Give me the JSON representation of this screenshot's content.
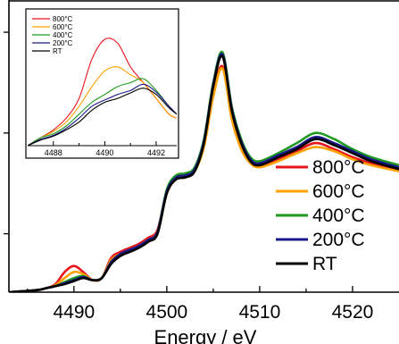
{
  "chart_data": [
    {
      "type": "line",
      "title": "",
      "xlabel": "Energy / eV",
      "ylabel": "",
      "xlim": [
        4483,
        4525
      ],
      "ylim": [
        0,
        1.45
      ],
      "xticks": [
        "4490",
        "4500",
        "4510",
        "4520"
      ],
      "xtick_values": [
        4490,
        4500,
        4510,
        4520
      ],
      "grid": false,
      "legend_position": "right",
      "x": [
        4483,
        4486,
        4487,
        4488,
        4489,
        4490,
        4491,
        4492,
        4493,
        4494,
        4495,
        4496,
        4497,
        4498,
        4499,
        4500,
        4501,
        4502,
        4503,
        4504,
        4505,
        4506,
        4507,
        4508,
        4509,
        4510,
        4512,
        4514,
        4516,
        4518,
        4520,
        4522,
        4525
      ],
      "series": [
        {
          "name": "800°C",
          "color": "#e8141e",
          "values": [
            0.0,
            0.01,
            0.02,
            0.04,
            0.1,
            0.13,
            0.1,
            0.06,
            0.07,
            0.17,
            0.2,
            0.22,
            0.24,
            0.27,
            0.31,
            0.5,
            0.57,
            0.58,
            0.61,
            0.73,
            0.98,
            1.12,
            0.86,
            0.72,
            0.65,
            0.63,
            0.66,
            0.7,
            0.74,
            0.71,
            0.67,
            0.64,
            0.61
          ]
        },
        {
          "name": "600°C",
          "color": "#ffa100",
          "values": [
            0.0,
            0.01,
            0.02,
            0.035,
            0.07,
            0.1,
            0.09,
            0.06,
            0.07,
            0.16,
            0.19,
            0.21,
            0.23,
            0.26,
            0.3,
            0.49,
            0.56,
            0.57,
            0.6,
            0.72,
            0.97,
            1.11,
            0.86,
            0.71,
            0.64,
            0.62,
            0.65,
            0.69,
            0.72,
            0.7,
            0.66,
            0.63,
            0.6
          ]
        },
        {
          "name": "400°C",
          "color": "#1e9a1e",
          "values": [
            0.0,
            0.01,
            0.02,
            0.03,
            0.05,
            0.07,
            0.08,
            0.06,
            0.07,
            0.15,
            0.19,
            0.21,
            0.23,
            0.26,
            0.3,
            0.51,
            0.58,
            0.59,
            0.62,
            0.76,
            1.04,
            1.19,
            0.92,
            0.76,
            0.67,
            0.65,
            0.69,
            0.74,
            0.79,
            0.76,
            0.71,
            0.67,
            0.63
          ]
        },
        {
          "name": "200°C",
          "color": "#1a1a8c",
          "values": [
            0.0,
            0.01,
            0.02,
            0.03,
            0.045,
            0.06,
            0.075,
            0.06,
            0.07,
            0.15,
            0.19,
            0.21,
            0.23,
            0.26,
            0.3,
            0.5,
            0.57,
            0.58,
            0.61,
            0.75,
            1.03,
            1.18,
            0.91,
            0.75,
            0.66,
            0.64,
            0.68,
            0.72,
            0.77,
            0.74,
            0.7,
            0.66,
            0.62
          ]
        },
        {
          "name": "RT",
          "color": "#000000",
          "values": [
            0.0,
            0.01,
            0.02,
            0.03,
            0.04,
            0.055,
            0.07,
            0.06,
            0.07,
            0.14,
            0.18,
            0.2,
            0.22,
            0.25,
            0.29,
            0.49,
            0.56,
            0.57,
            0.6,
            0.74,
            1.02,
            1.17,
            0.9,
            0.74,
            0.65,
            0.63,
            0.67,
            0.71,
            0.76,
            0.73,
            0.69,
            0.65,
            0.61
          ]
        }
      ]
    },
    {
      "type": "line",
      "title": "",
      "xlabel": "",
      "ylabel": "",
      "xlim": [
        4487,
        4492.8
      ],
      "ylim": [
        0,
        0.16
      ],
      "xticks": [
        "4488",
        "4490",
        "4492"
      ],
      "xtick_values": [
        4488,
        4490,
        4492
      ],
      "grid": false,
      "legend_position": "top-left",
      "x": [
        4487,
        4487.5,
        4488,
        4488.5,
        4489,
        4489.5,
        4490,
        4490.5,
        4491,
        4491.5,
        4492,
        4492.5,
        4492.8
      ],
      "series": [
        {
          "name": "800°C",
          "color": "#e8141e",
          "values": [
            0.0,
            0.01,
            0.02,
            0.035,
            0.06,
            0.11,
            0.135,
            0.13,
            0.1,
            0.08,
            0.06,
            0.04,
            0.035
          ]
        },
        {
          "name": "600°C",
          "color": "#ffa100",
          "values": [
            0.0,
            0.01,
            0.018,
            0.03,
            0.05,
            0.075,
            0.095,
            0.1,
            0.09,
            0.08,
            0.06,
            0.04,
            0.035
          ]
        },
        {
          "name": "400°C",
          "color": "#1e9a1e",
          "values": [
            0.0,
            0.01,
            0.015,
            0.025,
            0.04,
            0.055,
            0.065,
            0.075,
            0.08,
            0.085,
            0.07,
            0.05,
            0.04
          ]
        },
        {
          "name": "200°C",
          "color": "#1a1a8c",
          "values": [
            0.0,
            0.008,
            0.013,
            0.022,
            0.035,
            0.05,
            0.058,
            0.065,
            0.07,
            0.078,
            0.068,
            0.05,
            0.04
          ]
        },
        {
          "name": "RT",
          "color": "#000000",
          "values": [
            0.0,
            0.007,
            0.012,
            0.02,
            0.03,
            0.045,
            0.055,
            0.06,
            0.067,
            0.073,
            0.065,
            0.048,
            0.04
          ]
        }
      ]
    }
  ]
}
